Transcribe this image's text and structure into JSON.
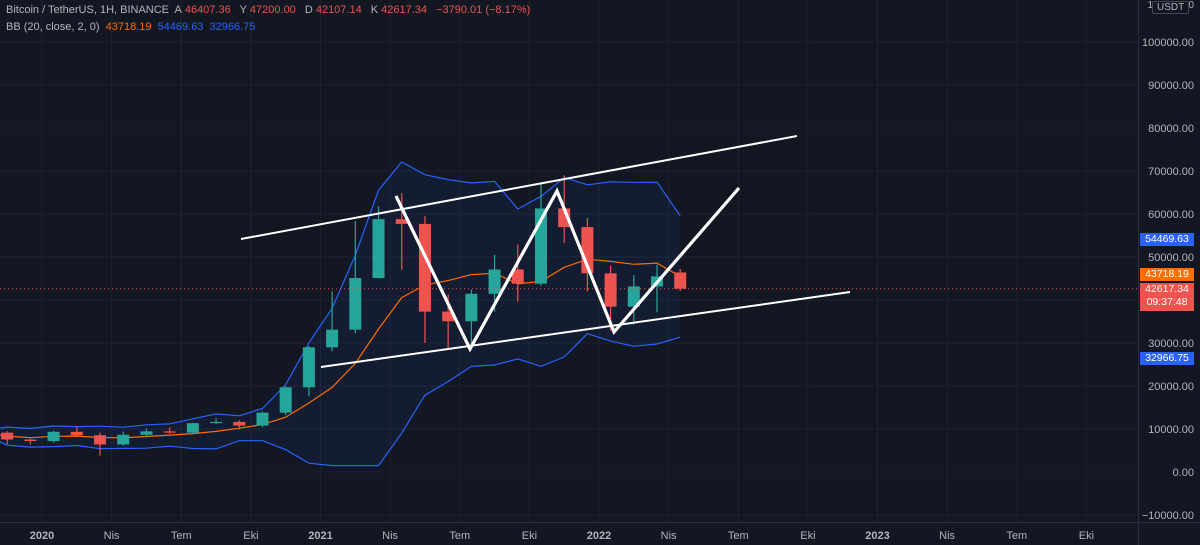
{
  "header": {
    "symbol": "Bitcoin / TetherUS, 1H, BINANCE",
    "o_key": "A",
    "o_val": "46407.36",
    "h_key": "Y",
    "h_val": "47200.00",
    "l_key": "D",
    "l_val": "42107.14",
    "c_key": "K",
    "c_val": "42617.34",
    "change": "−3790.01 (−8.17%)"
  },
  "indicator": {
    "name": "BB (20, close, 2, 0)",
    "basis": "43718.19",
    "upper": "54469.63",
    "lower": "32966.75"
  },
  "price_axis": {
    "currency": "USDT",
    "ticks": [
      "110000.00",
      "100000.00",
      "90000.00",
      "80000.00",
      "70000.00",
      "60000.00",
      "50000.00",
      "40000.00",
      "30000.00",
      "20000.00",
      "10000.00",
      "0.00",
      "−10000.00"
    ],
    "tags": {
      "upper": {
        "text": "54469.63",
        "color": "#2962ff"
      },
      "basis": {
        "text": "43718.19",
        "color": "#ff6d00"
      },
      "last": {
        "text": "42617.34",
        "color": "#ef5350"
      },
      "countdown": {
        "text": "09:37:48",
        "color": "#ef5350"
      },
      "lower": {
        "text": "32966.75",
        "color": "#2962ff"
      }
    }
  },
  "time_axis": {
    "labels": [
      {
        "text": "2020",
        "bold": true
      },
      {
        "text": "Nis"
      },
      {
        "text": "Tem"
      },
      {
        "text": "Eki"
      },
      {
        "text": "2021",
        "bold": true
      },
      {
        "text": "Nis"
      },
      {
        "text": "Tem"
      },
      {
        "text": "Eki"
      },
      {
        "text": "2022",
        "bold": true
      },
      {
        "text": "Nis"
      },
      {
        "text": "Tem"
      },
      {
        "text": "Eki"
      },
      {
        "text": "2023",
        "bold": true
      },
      {
        "text": "Nis"
      },
      {
        "text": "Tem"
      },
      {
        "text": "Eki"
      }
    ]
  },
  "colors": {
    "up": "#26a69a",
    "down": "#ef5350",
    "bb_band": "#2962ff",
    "bb_basis": "#ff6d00",
    "drawing": "#ffffff",
    "grid": "#1e222d",
    "background": "#131722"
  },
  "chart_data": {
    "type": "candlestick",
    "interval": "monthly bars (displayed chart)",
    "ylim": [
      -10000,
      110000
    ],
    "bars": [
      {
        "d": "2019-10",
        "o": 8300,
        "h": 10400,
        "l": 7400,
        "c": 9150
      },
      {
        "d": "2019-11",
        "o": 9150,
        "h": 9500,
        "l": 6500,
        "c": 7550
      },
      {
        "d": "2019-12",
        "o": 7550,
        "h": 7750,
        "l": 6400,
        "c": 7200
      },
      {
        "d": "2020-01",
        "o": 7200,
        "h": 9600,
        "l": 6850,
        "c": 9350
      },
      {
        "d": "2020-02",
        "o": 9350,
        "h": 10500,
        "l": 8450,
        "c": 8550
      },
      {
        "d": "2020-03",
        "o": 8550,
        "h": 9200,
        "l": 3800,
        "c": 6400
      },
      {
        "d": "2020-04",
        "o": 6400,
        "h": 9450,
        "l": 6150,
        "c": 8650
      },
      {
        "d": "2020-05",
        "o": 8650,
        "h": 10100,
        "l": 8100,
        "c": 9450
      },
      {
        "d": "2020-06",
        "o": 9450,
        "h": 10400,
        "l": 8900,
        "c": 9150
      },
      {
        "d": "2020-07",
        "o": 9150,
        "h": 11450,
        "l": 8950,
        "c": 11350
      },
      {
        "d": "2020-08",
        "o": 11350,
        "h": 12500,
        "l": 11100,
        "c": 11650
      },
      {
        "d": "2020-09",
        "o": 11650,
        "h": 12050,
        "l": 9850,
        "c": 10800
      },
      {
        "d": "2020-10",
        "o": 10800,
        "h": 14100,
        "l": 10400,
        "c": 13800
      },
      {
        "d": "2020-11",
        "o": 13800,
        "h": 19900,
        "l": 13200,
        "c": 19700
      },
      {
        "d": "2020-12",
        "o": 19700,
        "h": 29300,
        "l": 17600,
        "c": 29000
      },
      {
        "d": "2021-01",
        "o": 29000,
        "h": 41950,
        "l": 28100,
        "c": 33100
      },
      {
        "d": "2021-02",
        "o": 33100,
        "h": 58350,
        "l": 32300,
        "c": 45100
      },
      {
        "d": "2021-03",
        "o": 45100,
        "h": 61800,
        "l": 45000,
        "c": 58800
      },
      {
        "d": "2021-04",
        "o": 58800,
        "h": 64850,
        "l": 47050,
        "c": 57700
      },
      {
        "d": "2021-05",
        "o": 57700,
        "h": 59500,
        "l": 30000,
        "c": 37300
      },
      {
        "d": "2021-06",
        "o": 37300,
        "h": 41300,
        "l": 28800,
        "c": 35050
      },
      {
        "d": "2021-07",
        "o": 35050,
        "h": 42450,
        "l": 29300,
        "c": 41450
      },
      {
        "d": "2021-08",
        "o": 41450,
        "h": 50500,
        "l": 37300,
        "c": 47100
      },
      {
        "d": "2021-09",
        "o": 47100,
        "h": 52900,
        "l": 39600,
        "c": 43800
      },
      {
        "d": "2021-10",
        "o": 43800,
        "h": 67000,
        "l": 43300,
        "c": 61300
      },
      {
        "d": "2021-11",
        "o": 61300,
        "h": 69000,
        "l": 53250,
        "c": 56950
      },
      {
        "d": "2021-12",
        "o": 56950,
        "h": 59050,
        "l": 42000,
        "c": 46200
      },
      {
        "d": "2022-01",
        "o": 46200,
        "h": 47950,
        "l": 32950,
        "c": 38450
      },
      {
        "d": "2022-02",
        "o": 38450,
        "h": 45800,
        "l": 34300,
        "c": 43150
      },
      {
        "d": "2022-03",
        "o": 43150,
        "h": 48200,
        "l": 37150,
        "c": 45500
      },
      {
        "d": "2022-04",
        "o": 46407.36,
        "h": 47200,
        "l": 42107.14,
        "c": 42617.34
      }
    ]
  }
}
